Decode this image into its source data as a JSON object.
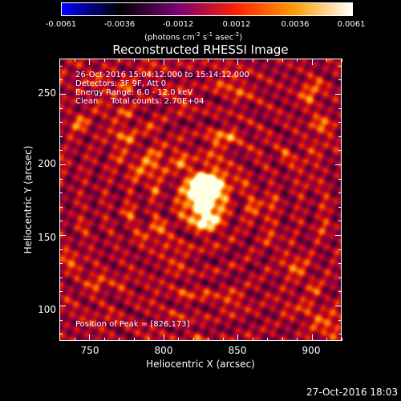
{
  "colorbar": {
    "ticks": [
      "-0.0061",
      "-0.0036",
      "-0.0012",
      "0.0012",
      "0.0036",
      "0.0061"
    ],
    "units_base": "(photons cm",
    "units_e1": "-2",
    "units_mid1": " s",
    "units_e2": "-1",
    "units_mid2": " asec",
    "units_e3": "-2",
    "units_end": ")",
    "gradient": [
      "#0000ff",
      "#000000",
      "#7a0077",
      "#ff2000",
      "#ff9a00",
      "#ffffff"
    ]
  },
  "plot": {
    "title": "Reconstructed RHESSI Image",
    "info_lines": [
      "26-Oct-2016 15:04:12.000 to 15:14:12.000",
      "Detectors: 3F 9F, Att 0",
      "Energy Range: 6.0 - 12.0 keV",
      "Clean     Total counts: 2.70E+04"
    ],
    "peak_label": "Position of Peak = [826,173]",
    "xlabel": "Heliocentric X (arcsec)",
    "ylabel": "Heliocentric Y (arcsec)",
    "xticks": [
      "750",
      "800",
      "850",
      "900"
    ],
    "yticks": [
      "250",
      "200",
      "150",
      "100"
    ],
    "xrange": [
      730,
      920
    ],
    "yrange": [
      75,
      275
    ],
    "peak_x": 826,
    "peak_y": 173
  },
  "timestamp": "27-Oct-2016 18:03"
}
